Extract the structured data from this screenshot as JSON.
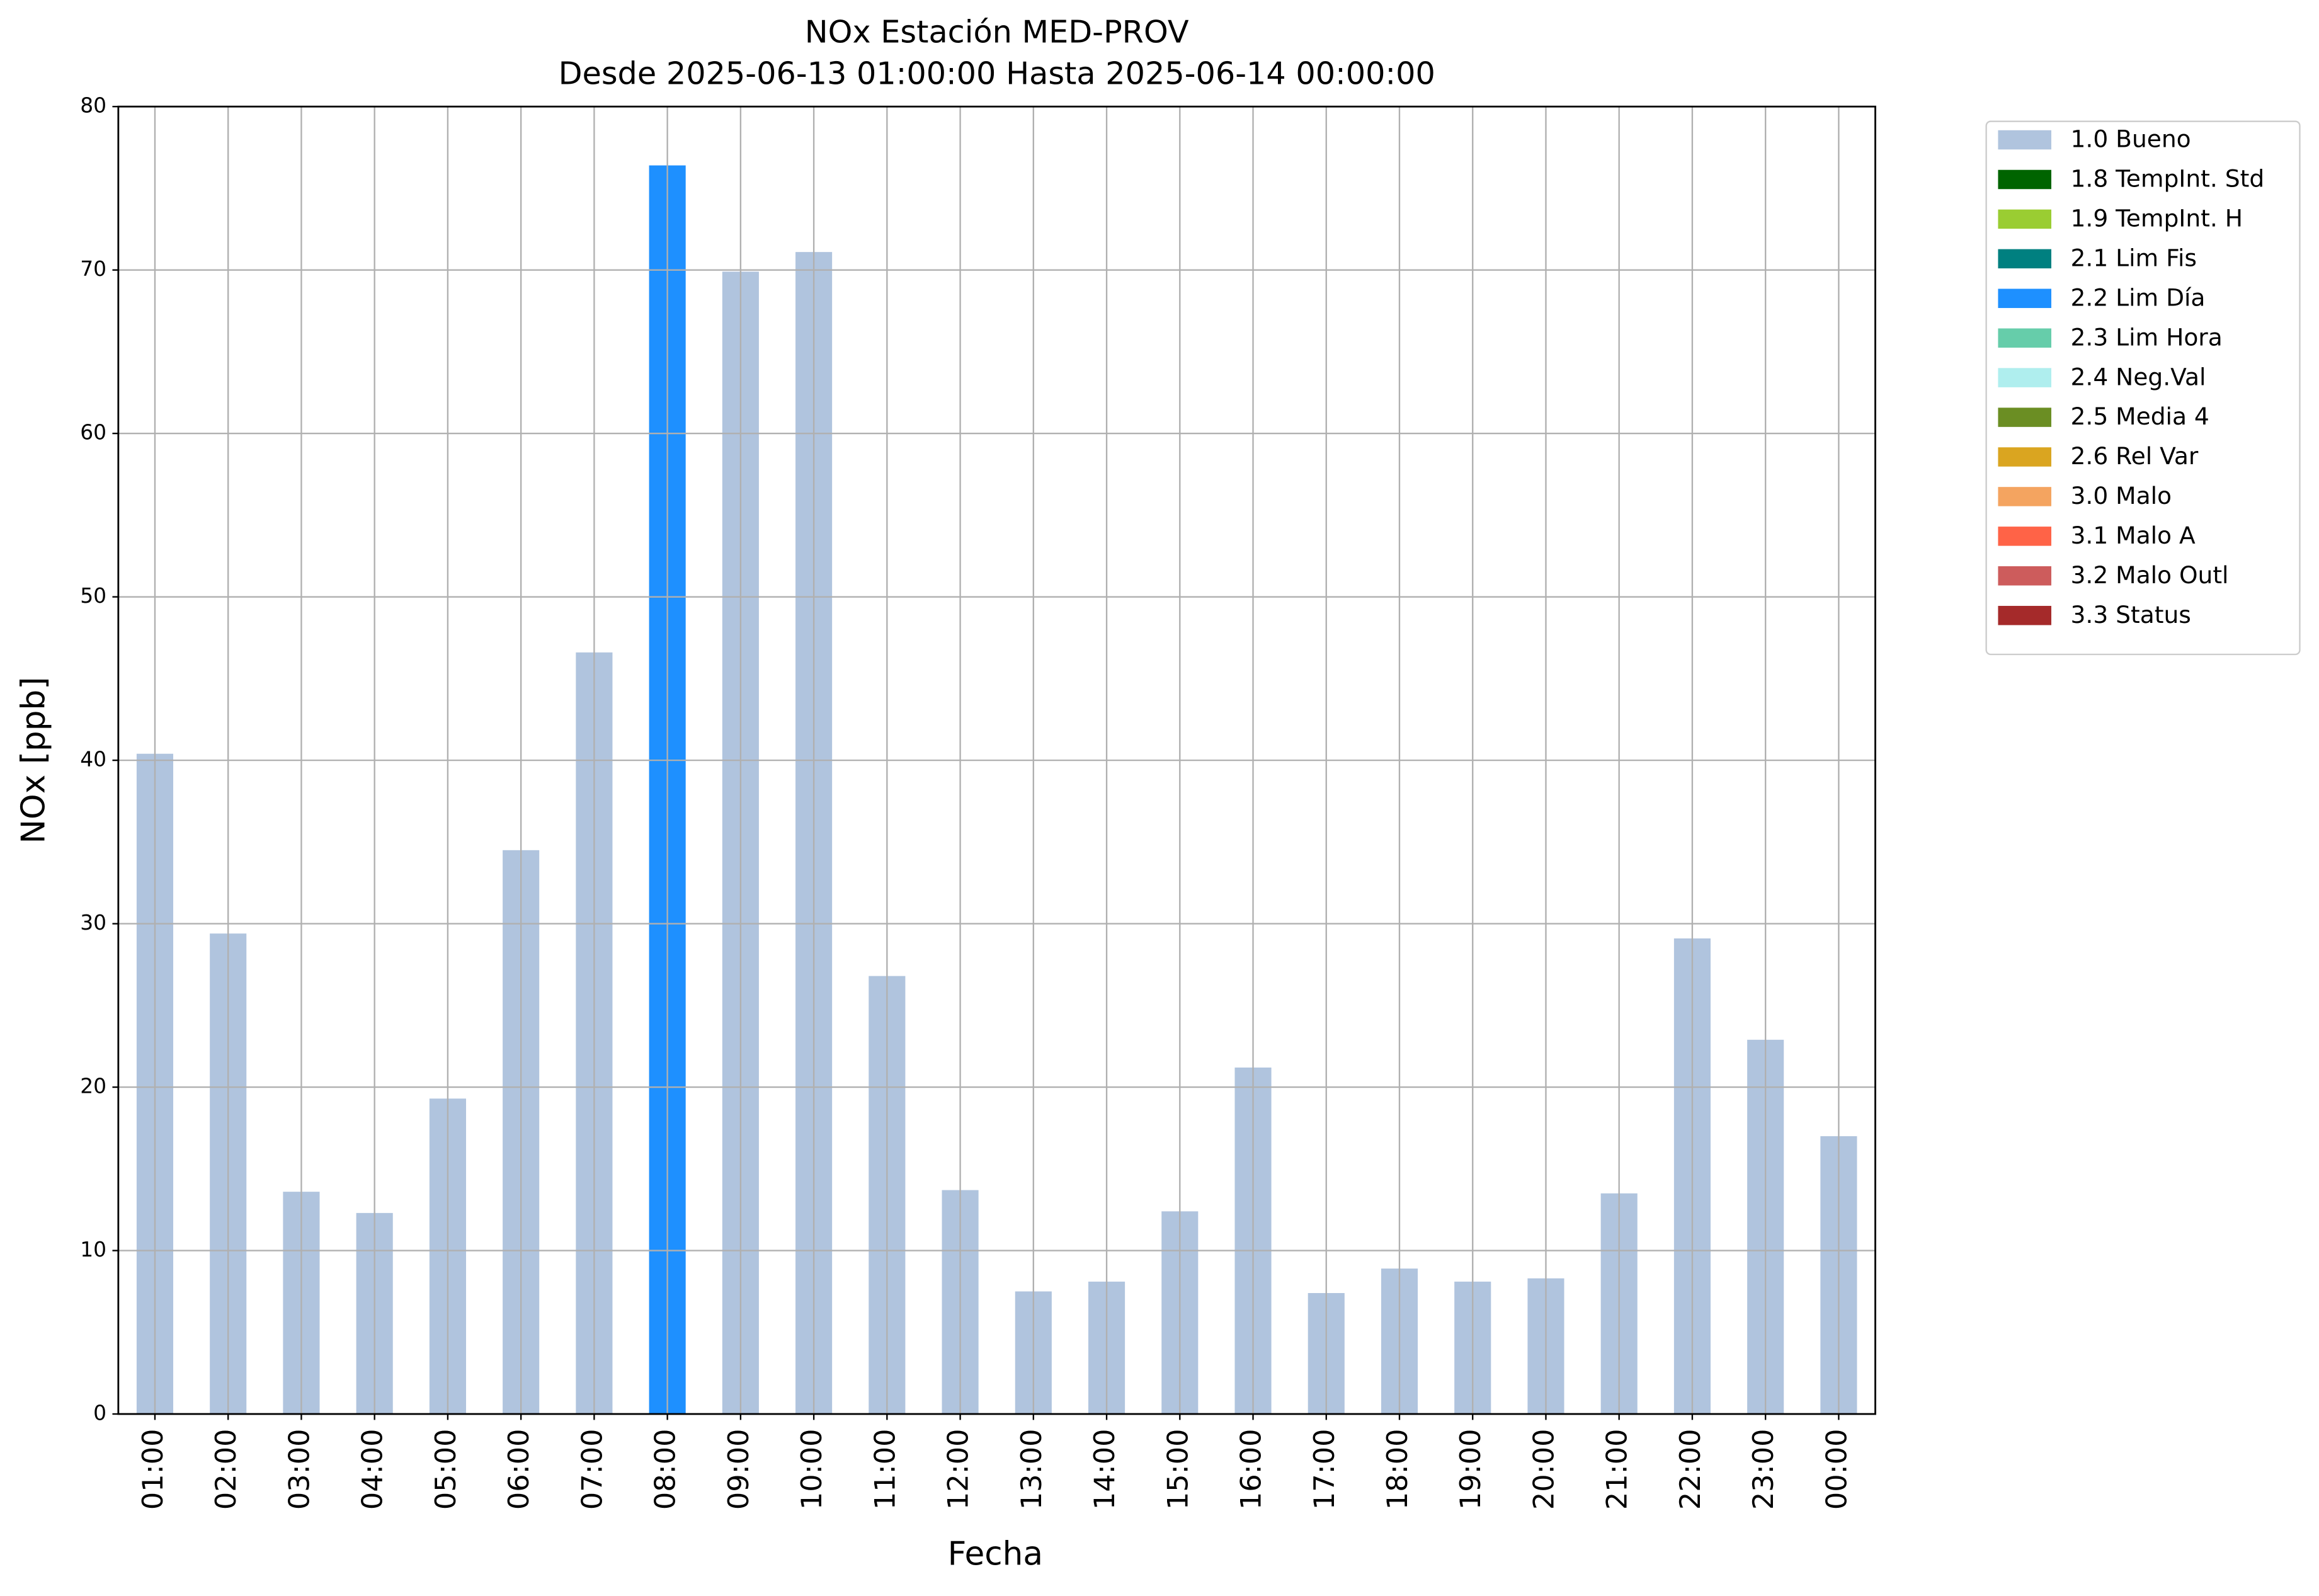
{
  "chart_data": {
    "type": "stacked_bar",
    "title": "NOx Estación MED-PROV",
    "subtitle": "Desde 2025-06-13 01:00:00 Hasta 2025-06-14 00:00:00",
    "x_label": "Fecha",
    "y_label": "NOx [ppb]",
    "categories": [
      "01:00",
      "02:00",
      "03:00",
      "04:00",
      "05:00",
      "06:00",
      "07:00",
      "08:00",
      "09:00",
      "10:00",
      "11:00",
      "12:00",
      "13:00",
      "14:00",
      "15:00",
      "16:00",
      "17:00",
      "18:00",
      "19:00",
      "20:00",
      "21:00",
      "22:00",
      "23:00",
      "00:00"
    ],
    "series": [
      {
        "name": "1.0 Bueno",
        "color": "#b0c4de",
        "values": [
          40.4,
          29.4,
          13.6,
          12.3,
          19.3,
          34.5,
          46.6,
          null,
          69.9,
          71.1,
          26.8,
          13.7,
          7.5,
          8.1,
          12.4,
          21.2,
          7.4,
          8.9,
          8.1,
          8.3,
          13.5,
          29.1,
          22.9,
          17.0
        ]
      },
      {
        "name": "1.8 TempInt. Std",
        "color": "#006400",
        "values": [
          null,
          null,
          null,
          null,
          null,
          null,
          null,
          null,
          null,
          null,
          null,
          null,
          null,
          null,
          null,
          null,
          null,
          null,
          null,
          null,
          null,
          null,
          null,
          null
        ]
      },
      {
        "name": "1.9 TempInt. H",
        "color": "#9acd32",
        "values": [
          null,
          null,
          null,
          null,
          null,
          null,
          null,
          null,
          null,
          null,
          null,
          null,
          null,
          null,
          null,
          null,
          null,
          null,
          null,
          null,
          null,
          null,
          null,
          null
        ]
      },
      {
        "name": "2.1 Lim Fis",
        "color": "#008080",
        "values": [
          null,
          null,
          null,
          null,
          null,
          null,
          null,
          null,
          null,
          null,
          null,
          null,
          null,
          null,
          null,
          null,
          null,
          null,
          null,
          null,
          null,
          null,
          null,
          null
        ]
      },
      {
        "name": "2.2 Lim Día",
        "color": "#1e90ff",
        "values": [
          null,
          null,
          null,
          null,
          null,
          null,
          null,
          76.4,
          null,
          null,
          null,
          null,
          null,
          null,
          null,
          null,
          null,
          null,
          null,
          null,
          null,
          null,
          null,
          null
        ]
      },
      {
        "name": "2.3 Lim Hora",
        "color": "#66cdaa",
        "values": [
          null,
          null,
          null,
          null,
          null,
          null,
          null,
          null,
          null,
          null,
          null,
          null,
          null,
          null,
          null,
          null,
          null,
          null,
          null,
          null,
          null,
          null,
          null,
          null
        ]
      },
      {
        "name": "2.4 Neg.Val",
        "color": "#afeeee",
        "values": [
          null,
          null,
          null,
          null,
          null,
          null,
          null,
          null,
          null,
          null,
          null,
          null,
          null,
          null,
          null,
          null,
          null,
          null,
          null,
          null,
          null,
          null,
          null,
          null
        ]
      },
      {
        "name": "2.5 Media 4",
        "color": "#6b8e23",
        "values": [
          null,
          null,
          null,
          null,
          null,
          null,
          null,
          null,
          null,
          null,
          null,
          null,
          null,
          null,
          null,
          null,
          null,
          null,
          null,
          null,
          null,
          null,
          null,
          null
        ]
      },
      {
        "name": "2.6 Rel Var",
        "color": "#daa520",
        "values": [
          null,
          null,
          null,
          null,
          null,
          null,
          null,
          null,
          null,
          null,
          null,
          null,
          null,
          null,
          null,
          null,
          null,
          null,
          null,
          null,
          null,
          null,
          null,
          null
        ]
      },
      {
        "name": "3.0 Malo",
        "color": "#f4a460",
        "values": [
          null,
          null,
          null,
          null,
          null,
          null,
          null,
          null,
          null,
          null,
          null,
          null,
          null,
          null,
          null,
          null,
          null,
          null,
          null,
          null,
          null,
          null,
          null,
          null
        ]
      },
      {
        "name": "3.1 Malo A",
        "color": "#ff6347",
        "values": [
          null,
          null,
          null,
          null,
          null,
          null,
          null,
          null,
          null,
          null,
          null,
          null,
          null,
          null,
          null,
          null,
          null,
          null,
          null,
          null,
          null,
          null,
          null,
          null
        ]
      },
      {
        "name": "3.2 Malo Outl",
        "color": "#cd5c5c",
        "values": [
          null,
          null,
          null,
          null,
          null,
          null,
          null,
          null,
          null,
          null,
          null,
          null,
          null,
          null,
          null,
          null,
          null,
          null,
          null,
          null,
          null,
          null,
          null,
          null
        ]
      },
      {
        "name": "3.3 Status",
        "color": "#a52a2a",
        "values": [
          null,
          null,
          null,
          null,
          null,
          null,
          null,
          null,
          null,
          null,
          null,
          null,
          null,
          null,
          null,
          null,
          null,
          null,
          null,
          null,
          null,
          null,
          null,
          null
        ]
      }
    ],
    "ylim": [
      0,
      80
    ],
    "yticks": [
      0,
      10,
      20,
      30,
      40,
      50,
      60,
      70,
      80
    ],
    "grid": true,
    "legend": "outside-right"
  }
}
